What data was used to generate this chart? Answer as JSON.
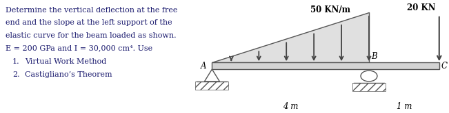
{
  "bg_color": "#ffffff",
  "text_color": "#1a1a6e",
  "beam_fill": "#d4d4d4",
  "beam_edge": "#555555",
  "load_fill": "#e0e0e0",
  "arrow_color": "#444444",
  "support_color": "#555555",
  "hatch_color": "#555555",
  "problem_text": [
    "Determine the vertical deflection at the free",
    "end and the slope at the left support of the",
    "elastic curve for the beam loaded as shown.",
    "E = 200 GPa and I = 30,000 cm⁴. Use"
  ],
  "list_items": [
    "Virtual Work Method",
    "Castigliano’s Theorem"
  ],
  "load_label": "50 KN/m",
  "point_load_label": "20 KN",
  "dim_label_left": "4 m",
  "dim_label_right": "1 m",
  "label_A": "A",
  "label_B": "B",
  "label_C": "C",
  "text_fs": 8.0,
  "label_fs": 8.5,
  "load_label_fs": 8.5,
  "dim_label_fs": 8.5
}
